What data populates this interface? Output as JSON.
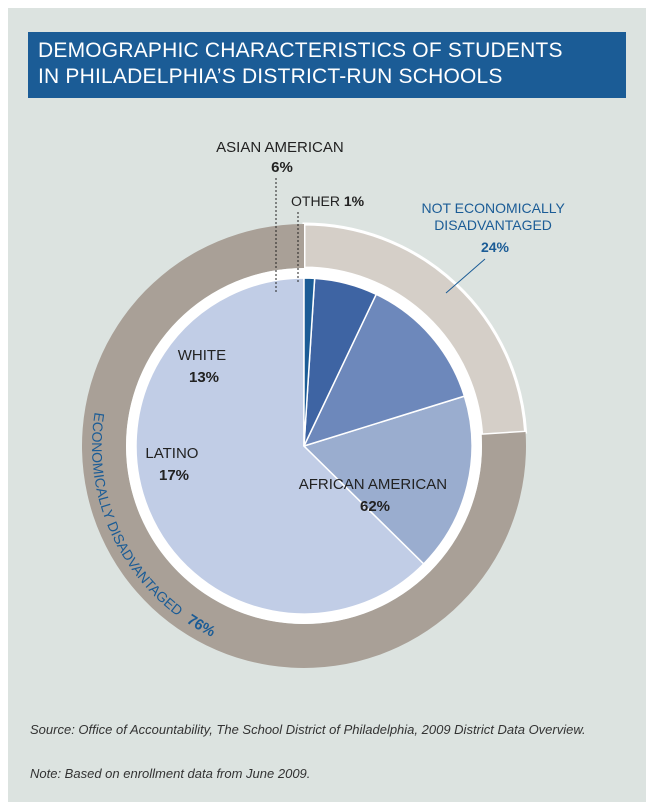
{
  "title": {
    "line1": "DEMOGRAPHIC CHARACTERISTICS OF STUDENTS",
    "line2": "IN PHILADELPHIA’S DISTRICT-RUN SCHOOLS"
  },
  "chart_data": {
    "type": "pie",
    "title": "DEMOGRAPHIC CHARACTERISTICS OF STUDENTS IN PHILADELPHIA’S DISTRICT-RUN SCHOOLS",
    "inner_series": {
      "slices": [
        {
          "label": "AFRICAN AMERICAN",
          "value": 62,
          "value_label": "62%",
          "color": "#c1cde6"
        },
        {
          "label": "LATINO",
          "value": 17,
          "value_label": "17%",
          "color": "#9aadcf"
        },
        {
          "label": "WHITE",
          "value": 13,
          "value_label": "13%",
          "color": "#6d88bb"
        },
        {
          "label": "ASIAN AMERICAN",
          "value": 6,
          "value_label": "6%",
          "color": "#3e64a3"
        },
        {
          "label": "OTHER",
          "value": 1,
          "value_label": "1%",
          "color": "#1b5c96"
        }
      ]
    },
    "outer_series": {
      "slices": [
        {
          "label": "NOT ECONOMICALLY DISADVANTAGED",
          "label_line1": "NOT ECONOMICALLY",
          "label_line2": "DISADVANTAGED",
          "value": 24,
          "value_label": "24%",
          "color": "#d5cfc8"
        },
        {
          "label": "ECONOMICALLY DISADVANTAGED",
          "value": 76,
          "value_label": "76%",
          "color": "#a9a097"
        }
      ]
    },
    "colors": {
      "label_dark": "#222222",
      "label_blue": "#1b5c96"
    }
  },
  "source": "Source: Office of Accountability, The School District of Philadelphia, 2009 District Data Overview.",
  "footnote": "Note: Based on enrollment data from June 2009."
}
